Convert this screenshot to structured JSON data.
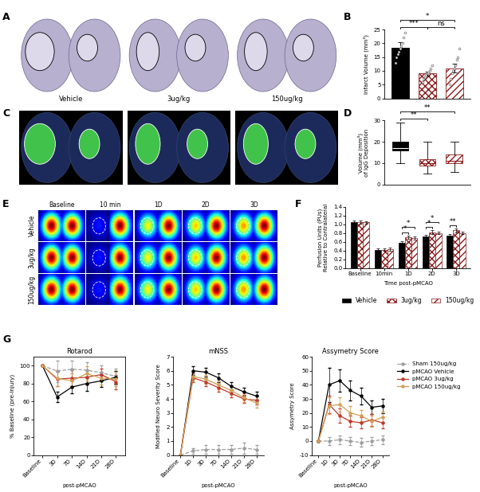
{
  "panel_labels": [
    "A",
    "B",
    "C",
    "D",
    "E",
    "F",
    "G"
  ],
  "images": [
    {
      "labels": [
        "Vehicle",
        "3ug/kg",
        "150ug/kg"
      ]
    },
    {
      "columns": [
        "Baseline",
        "10 min",
        "1D",
        "2D",
        "3D"
      ],
      "rows": [
        "Vehicle",
        "3ug/kg",
        "150ug/kg"
      ]
    }
  ],
  "chart_data": [
    {
      "type": "bar",
      "ylabel": "Infarct Volume (mm³)",
      "categories": [
        null,
        null,
        null
      ],
      "values": [
        18.5,
        9.0,
        11.0
      ],
      "errors": [
        2.0,
        0.8,
        1.5
      ],
      "points": [
        [
          13,
          15,
          16,
          17,
          18,
          19,
          20,
          22,
          24
        ],
        [
          6,
          7,
          8,
          8.5,
          9,
          9.5,
          10,
          11,
          12
        ],
        [
          5,
          7,
          9,
          10,
          11,
          12,
          14,
          15,
          18
        ]
      ],
      "colors": [
        "#000000",
        "#8b1a1a",
        "#8b1a1a"
      ],
      "ylim": [
        0,
        25
      ],
      "yticks": [
        0,
        5,
        10,
        15,
        20,
        25
      ],
      "annotations": [
        {
          "text": "***",
          "from": 0,
          "to": 1
        },
        {
          "text": "ns",
          "from": 1,
          "to": 2
        },
        {
          "text": "*",
          "from": 0,
          "to": 2
        }
      ]
    },
    {
      "type": "box",
      "ylabel": "Volume (mm³)\nof IgG Deposition",
      "categories": [
        null,
        null,
        null
      ],
      "stats": [
        {
          "min": 10,
          "q1": 16,
          "median": 17,
          "q3": 20,
          "max": 29
        },
        {
          "min": 5,
          "q1": 9,
          "median": 10,
          "q3": 12,
          "max": 20
        },
        {
          "min": 6,
          "q1": 10,
          "median": 11,
          "q3": 14,
          "max": 20
        }
      ],
      "colors": [
        "#000000",
        "#8b1a1a",
        "#8b1a1a"
      ],
      "ylim": [
        0,
        30
      ],
      "yticks": [
        0,
        10,
        20,
        30
      ],
      "annotations": [
        {
          "text": "**",
          "from": 0,
          "to": 1
        },
        {
          "text": "**",
          "from": 0,
          "to": 2
        }
      ]
    },
    {
      "type": "bar",
      "xlabel": "Time post-pMCAO",
      "ylabel": "Perfusion Units (PUs)\nRelative to Contralateral",
      "categories": [
        "Baseline",
        "10min",
        "1D",
        "2D",
        "3D"
      ],
      "series": [
        {
          "name": "Vehicle",
          "color": "#000000",
          "values": [
            1.05,
            0.42,
            0.58,
            0.72,
            0.74
          ],
          "errors": [
            0.03,
            0.03,
            0.03,
            0.03,
            0.03
          ]
        },
        {
          "name": "3ug/kg",
          "color": "#8b1a1a",
          "values": [
            1.05,
            0.42,
            0.7,
            0.82,
            0.86
          ],
          "errors": [
            0.03,
            0.03,
            0.04,
            0.04,
            0.04
          ]
        },
        {
          "name": "150ug/kg",
          "color": "#8b1a1a",
          "values": [
            1.04,
            0.43,
            0.68,
            0.8,
            0.8
          ],
          "errors": [
            0.03,
            0.04,
            0.04,
            0.03,
            0.03
          ]
        }
      ],
      "ylim": [
        0,
        1.4
      ],
      "yticks": [
        0.0,
        0.2,
        0.4,
        0.6,
        0.8,
        1.0,
        1.2,
        1.4
      ],
      "legend": "lower center",
      "annotations": [
        {
          "text": "*",
          "category": 2,
          "from": 0,
          "to": 1
        },
        {
          "text": "*",
          "category": 2,
          "from": 0,
          "to": 2
        },
        {
          "text": "*",
          "category": 3,
          "from": 0,
          "to": 1
        },
        {
          "text": "*",
          "category": 3,
          "from": 0,
          "to": 2
        },
        {
          "text": "**",
          "category": 4,
          "from": 0,
          "to": 1
        }
      ]
    },
    {
      "type": "line",
      "title": "Rotarod",
      "xlabel": "post-pMCAO",
      "ylabel": "% Baseline (pre-injury)",
      "categories": [
        "Baseline",
        "3D",
        "7D",
        "14D",
        "21D",
        "28D"
      ],
      "series": [
        {
          "name": "Sham 150ug/kg",
          "color": "#9e9e9e",
          "line_style": "dashed",
          "marker": "o",
          "values": [
            100,
            94,
            96,
            95,
            92,
            88
          ],
          "errors": [
            0,
            12,
            10,
            9,
            8,
            9
          ]
        },
        {
          "name": "pMCAO Vehicle",
          "color": "#000000",
          "line_style": "solid",
          "marker": "o",
          "values": [
            100,
            65,
            76,
            80,
            83,
            87
          ],
          "errors": [
            0,
            6,
            7,
            8,
            7,
            7
          ]
        },
        {
          "name": "pMCAO 3ug/kg",
          "color": "#c0392b",
          "line_style": "solid",
          "marker": "o",
          "values": [
            100,
            85,
            86,
            87,
            90,
            82
          ],
          "errors": [
            0,
            8,
            9,
            8,
            7,
            8
          ]
        },
        {
          "name": "pMCAO 150ug/kg",
          "color": "#d4a055",
          "line_style": "solid",
          "marker": "o",
          "values": [
            100,
            86,
            83,
            91,
            86,
            85
          ],
          "errors": [
            0,
            9,
            8,
            8,
            7,
            8
          ]
        }
      ],
      "ylim": [
        0,
        110
      ],
      "yticks": [
        0,
        20,
        40,
        60,
        80,
        100
      ]
    },
    {
      "type": "line",
      "title": "mNSS",
      "xlabel": "post-pMCAO",
      "ylabel": "Modified Neuro Severity Score",
      "categories": [
        "Baseline",
        "1D",
        "3D",
        "7D",
        "14D",
        "21D",
        "28D"
      ],
      "series": [
        {
          "name": "Sham 150ug/kg",
          "color": "#9e9e9e",
          "line_style": "dashed",
          "marker": "o",
          "values": [
            0,
            0.3,
            0.4,
            0.4,
            0.4,
            0.5,
            0.4
          ],
          "errors": [
            0,
            0.2,
            0.3,
            0.3,
            0.3,
            0.4,
            0.3
          ]
        },
        {
          "name": "pMCAO Vehicle",
          "color": "#000000",
          "line_style": "solid",
          "marker": "o",
          "values": [
            0,
            6.0,
            5.9,
            5.5,
            4.9,
            4.5,
            4.2
          ],
          "errors": [
            0,
            0.3,
            0.3,
            0.3,
            0.3,
            0.3,
            0.3
          ]
        },
        {
          "name": "pMCAO 3ug/kg",
          "color": "#c0392b",
          "line_style": "solid",
          "marker": "o",
          "values": [
            0,
            5.5,
            5.2,
            4.8,
            4.4,
            4.0,
            3.9
          ],
          "errors": [
            0,
            0.3,
            0.3,
            0.3,
            0.3,
            0.3,
            0.3
          ]
        },
        {
          "name": "pMCAO 150ug/kg",
          "color": "#d4a055",
          "line_style": "solid",
          "marker": "o",
          "values": [
            0,
            5.6,
            5.4,
            5.0,
            4.6,
            4.1,
            3.7
          ],
          "errors": [
            0,
            0.3,
            0.3,
            0.3,
            0.3,
            0.3,
            0.3
          ]
        }
      ],
      "ylim": [
        0,
        7
      ],
      "yticks": [
        0,
        1,
        2,
        3,
        4,
        5,
        6,
        7
      ]
    },
    {
      "type": "line",
      "title": "Assymetry Score",
      "xlabel": "post-pMCAO",
      "ylabel": "Assymetry Score",
      "categories": [
        "Baseline",
        "1D",
        "3D",
        "7D",
        "14D",
        "21D",
        "28D"
      ],
      "series": [
        {
          "name": "Sham 150ug/kg",
          "color": "#9e9e9e",
          "line_style": "dashed",
          "marker": "o",
          "values": [
            0,
            0,
            1,
            0,
            -1,
            0,
            1
          ],
          "errors": [
            0,
            3,
            3,
            3,
            3,
            3,
            3
          ]
        },
        {
          "name": "pMCAO Vehicle",
          "color": "#000000",
          "line_style": "solid",
          "marker": "o",
          "values": [
            0,
            40,
            43,
            36,
            32,
            24,
            25
          ],
          "errors": [
            0,
            12,
            8,
            7,
            6,
            5,
            5
          ]
        },
        {
          "name": "pMCAO 3ug/kg",
          "color": "#c0392b",
          "line_style": "solid",
          "marker": "o",
          "values": [
            0,
            26,
            18,
            14,
            13,
            15,
            13
          ],
          "errors": [
            0,
            6,
            5,
            4,
            4,
            4,
            4
          ]
        },
        {
          "name": "pMCAO 150ug/kg",
          "color": "#d4a055",
          "line_style": "solid",
          "marker": "o",
          "values": [
            0,
            25,
            26,
            20,
            18,
            14,
            17
          ],
          "errors": [
            0,
            6,
            5,
            5,
            4,
            4,
            4
          ]
        }
      ],
      "ylim": [
        -10,
        60
      ],
      "yticks": [
        -10,
        0,
        10,
        20,
        30,
        40,
        50,
        60
      ],
      "legend": "upper left"
    }
  ]
}
